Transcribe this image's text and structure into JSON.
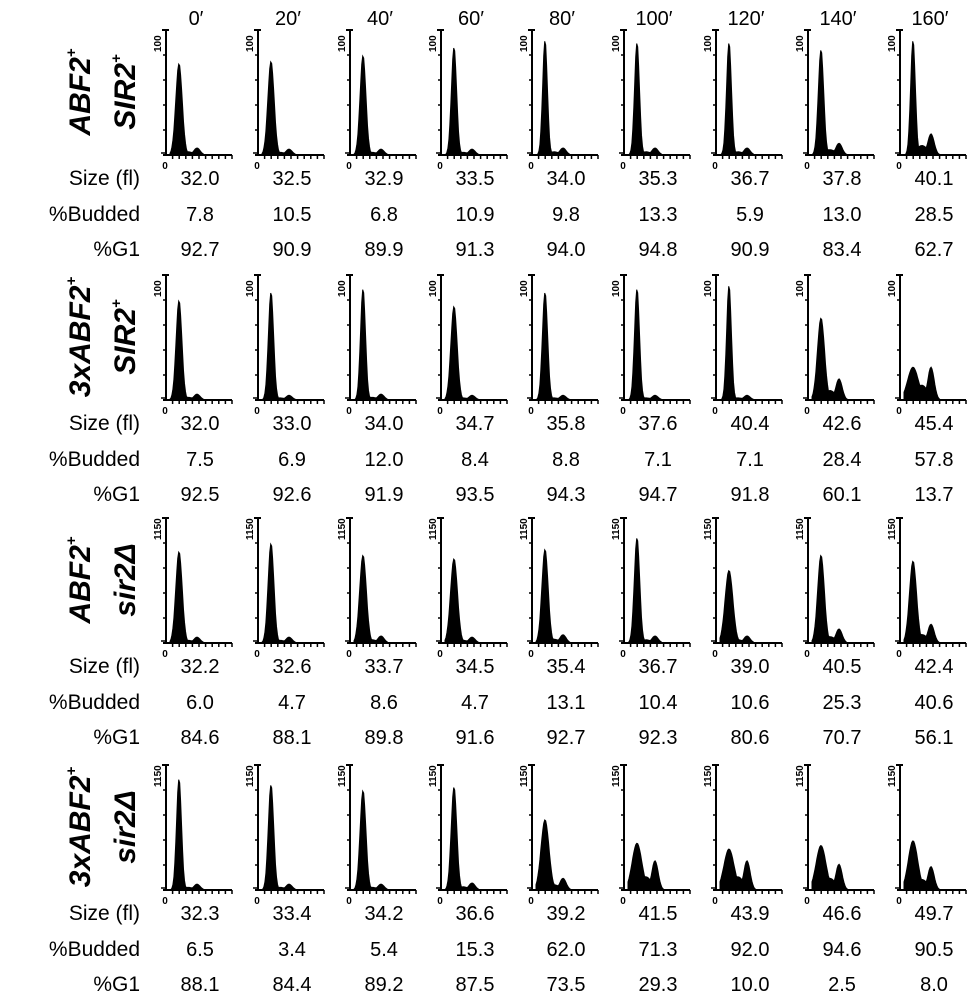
{
  "timepoints": [
    "0′",
    "20′",
    "40′",
    "60′",
    "80′",
    "100′",
    "120′",
    "140′",
    "160′"
  ],
  "row_labels": {
    "size": "Size (fl)",
    "budded": "%Budded",
    "g1": "%G1"
  },
  "axis": {
    "min_label": "0",
    "zero_label": "0"
  },
  "chart_data": [
    {
      "type": "histogram-panels",
      "strain": {
        "line1": "ABF2",
        "line1_sup": "+",
        "line2": "SIR2",
        "line2_sup": "+"
      },
      "ymax_label": "100",
      "size": [
        "32.0",
        "32.5",
        "32.9",
        "33.5",
        "34.0",
        "35.3",
        "36.7",
        "37.8",
        "40.1"
      ],
      "budded": [
        "7.8",
        "10.5",
        "6.8",
        "10.9",
        "9.8",
        "13.3",
        "5.9",
        "13.0",
        "28.5"
      ],
      "g1": [
        "92.7",
        "90.9",
        "89.9",
        "91.3",
        "94.0",
        "94.8",
        "90.9",
        "83.4",
        "62.7"
      ],
      "peaks": [
        {
          "g1": 0.78,
          "g2": 0.06
        },
        {
          "g1": 0.8,
          "g2": 0.05
        },
        {
          "g1": 0.85,
          "g2": 0.05
        },
        {
          "g1": 0.92,
          "g2": 0.05
        },
        {
          "g1": 0.98,
          "g2": 0.06
        },
        {
          "g1": 0.96,
          "g2": 0.06
        },
        {
          "g1": 0.96,
          "g2": 0.06
        },
        {
          "g1": 0.9,
          "g2": 0.1
        },
        {
          "g1": 0.98,
          "g2": 0.18
        }
      ]
    },
    {
      "type": "histogram-panels",
      "strain": {
        "line1": "3xABF2",
        "line1_sup": "+",
        "line2": "SIR2",
        "line2_sup": "+"
      },
      "ymax_label": "100",
      "size": [
        "32.0",
        "33.0",
        "34.0",
        "34.7",
        "35.8",
        "37.6",
        "40.4",
        "42.6",
        "45.4"
      ],
      "budded": [
        "7.5",
        "6.9",
        "12.0",
        "8.4",
        "8.8",
        "7.1",
        "7.1",
        "28.4",
        "57.8"
      ],
      "g1": [
        "92.5",
        "92.6",
        "91.9",
        "93.5",
        "94.3",
        "94.7",
        "91.8",
        "60.1",
        "13.7"
      ],
      "peaks": [
        {
          "g1": 0.85,
          "g2": 0.05
        },
        {
          "g1": 0.92,
          "g2": 0.04
        },
        {
          "g1": 0.95,
          "g2": 0.05
        },
        {
          "g1": 0.8,
          "g2": 0.04
        },
        {
          "g1": 0.92,
          "g2": 0.04
        },
        {
          "g1": 0.95,
          "g2": 0.04
        },
        {
          "g1": 0.98,
          "g2": 0.04
        },
        {
          "g1": 0.7,
          "g2": 0.18
        },
        {
          "g1": 0.28,
          "g2": 0.28
        }
      ]
    },
    {
      "type": "histogram-panels",
      "strain": {
        "line1": "ABF2",
        "line1_sup": "+",
        "line2": "sir2Δ",
        "line2_sup": ""
      },
      "ymax_label": "1150",
      "size": [
        "32.2",
        "32.6",
        "33.7",
        "34.5",
        "35.4",
        "36.7",
        "39.0",
        "40.5",
        "42.4"
      ],
      "budded": [
        "6.0",
        "4.7",
        "8.6",
        "4.7",
        "13.1",
        "10.4",
        "10.6",
        "25.3",
        "40.6"
      ],
      "g1": [
        "84.6",
        "88.1",
        "89.8",
        "91.6",
        "92.7",
        "92.3",
        "80.6",
        "70.7",
        "56.1"
      ],
      "peaks": [
        {
          "g1": 0.78,
          "g2": 0.05
        },
        {
          "g1": 0.85,
          "g2": 0.05
        },
        {
          "g1": 0.75,
          "g2": 0.06
        },
        {
          "g1": 0.72,
          "g2": 0.05
        },
        {
          "g1": 0.8,
          "g2": 0.07
        },
        {
          "g1": 0.9,
          "g2": 0.06
        },
        {
          "g1": 0.62,
          "g2": 0.06
        },
        {
          "g1": 0.75,
          "g2": 0.12
        },
        {
          "g1": 0.7,
          "g2": 0.16
        }
      ]
    },
    {
      "type": "histogram-panels",
      "strain": {
        "line1": "3xABF2",
        "line1_sup": "+",
        "line2": "sir2Δ",
        "line2_sup": ""
      },
      "ymax_label": "1150",
      "size": [
        "32.3",
        "33.4",
        "34.2",
        "36.6",
        "39.2",
        "41.5",
        "43.9",
        "46.6",
        "49.7"
      ],
      "budded": [
        "6.5",
        "3.4",
        "5.4",
        "15.3",
        "62.0",
        "71.3",
        "92.0",
        "94.6",
        "90.5"
      ],
      "g1": [
        "88.1",
        "84.4",
        "89.2",
        "87.5",
        "73.5",
        "29.3",
        "10.0",
        "2.5",
        "8.0"
      ],
      "peaks": [
        {
          "g1": 0.95,
          "g2": 0.05
        },
        {
          "g1": 0.9,
          "g2": 0.05
        },
        {
          "g1": 0.85,
          "g2": 0.05
        },
        {
          "g1": 0.88,
          "g2": 0.06
        },
        {
          "g1": 0.6,
          "g2": 0.1
        },
        {
          "g1": 0.4,
          "g2": 0.25
        },
        {
          "g1": 0.35,
          "g2": 0.25
        },
        {
          "g1": 0.38,
          "g2": 0.22
        },
        {
          "g1": 0.42,
          "g2": 0.2
        }
      ]
    }
  ]
}
